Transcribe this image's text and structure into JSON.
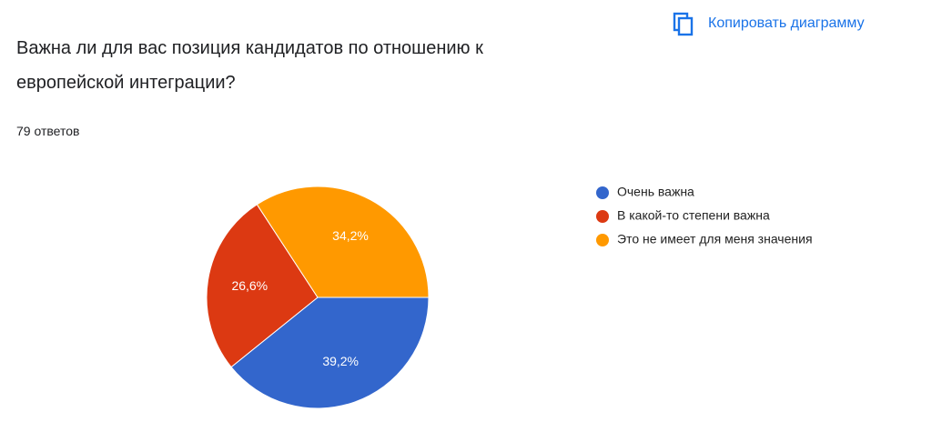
{
  "toolbar": {
    "copy_button": "Копировать диаграмму"
  },
  "chart_data": {
    "type": "pie",
    "title": "Важна ли для вас позиция кандидатов по отношению к европейской интеграции?",
    "subtitle": "79 ответов",
    "categories": [
      "Очень важна",
      "В какой-то степени важна",
      "Это не имеет для меня значения"
    ],
    "values": [
      39.2,
      26.6,
      34.2
    ],
    "value_labels": [
      "39,2%",
      "26,6%",
      "34,2%"
    ],
    "colors": [
      "#3366cc",
      "#dc3912",
      "#ff9900"
    ],
    "legend": "right"
  }
}
